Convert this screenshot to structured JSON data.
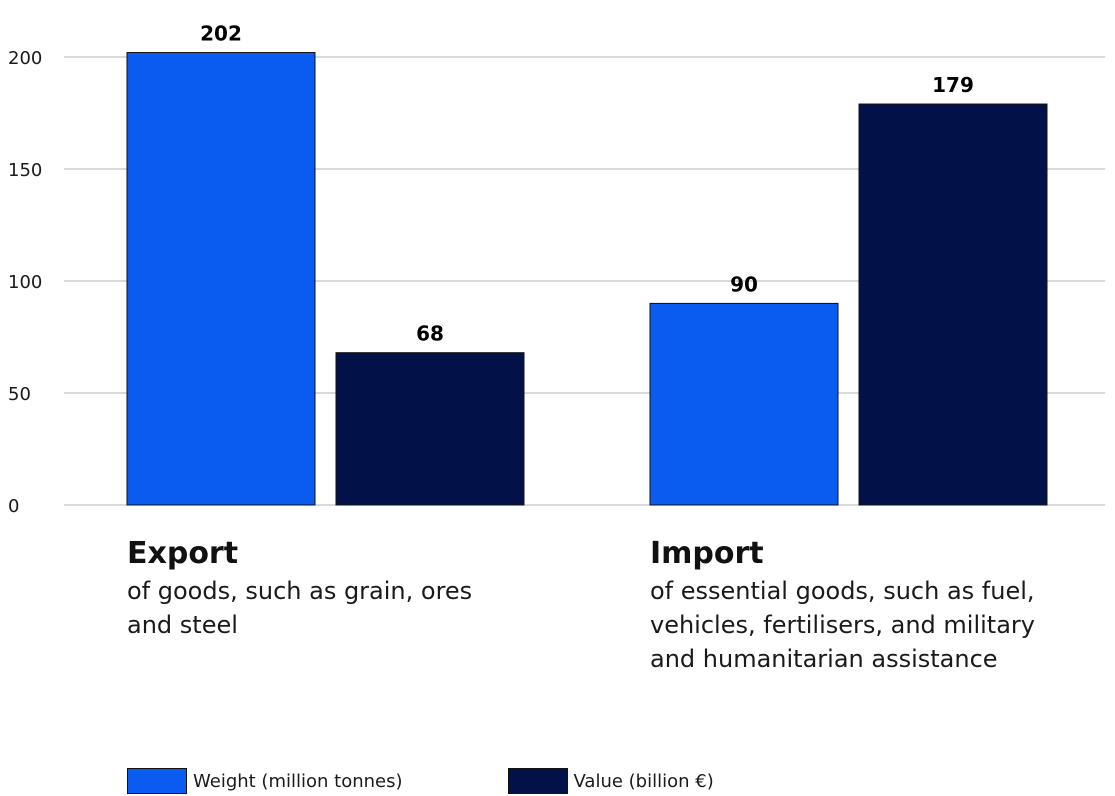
{
  "chart_data": {
    "type": "bar",
    "categories": [
      "Export",
      "Import"
    ],
    "category_descriptions": [
      [
        "of goods, such as grain, ores",
        "and steel"
      ],
      [
        "of essential goods, such as fuel,",
        "vehicles, fertilisers, and military",
        "and humanitarian assistance"
      ]
    ],
    "series": [
      {
        "name": "Weight (million tonnes)",
        "values": [
          202,
          90
        ],
        "color": "#0a5cf0"
      },
      {
        "name": "Value (billion €)",
        "values": [
          68,
          179
        ],
        "color": "#021248"
      }
    ],
    "data_labels": [
      [
        "202",
        "90"
      ],
      [
        "68",
        "179"
      ]
    ],
    "yticks": [
      "0",
      "50",
      "100",
      "150",
      "200"
    ],
    "ylim": [
      0,
      200
    ],
    "grid": true,
    "legend_position": "bottom-left"
  }
}
